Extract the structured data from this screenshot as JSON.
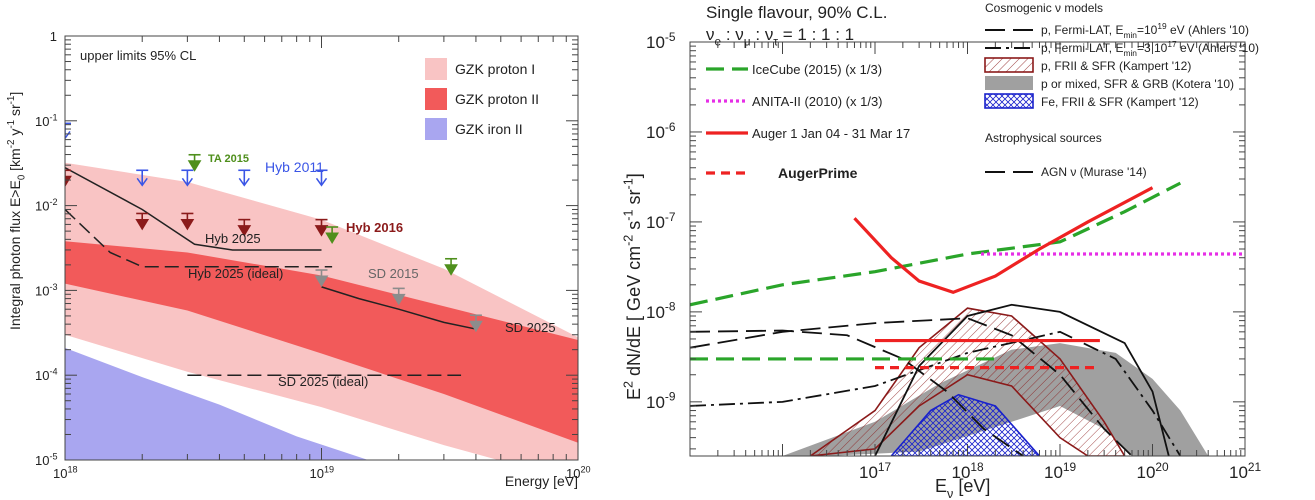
{
  "chart_data": [
    {
      "type": "line",
      "panel": "left",
      "title": "",
      "xlabel": "Energy [eV]",
      "ylabel": "Integral photon flux E>E0 [km^-2 y^-1 sr^-1]",
      "ylabel_parts": {
        "main": "Integral photon flux E>E",
        "sub": "0",
        "units": " [km",
        "u1": "-2",
        "u2": " y",
        "u3": "-1",
        "u4": " sr",
        "u5": "-1",
        "end": "]"
      },
      "xscale": "log",
      "yscale": "log",
      "xlim": [
        1e+18,
        1e+20
      ],
      "ylim": [
        1e-05,
        1
      ],
      "x_ticks": [
        {
          "value": 1e+18,
          "base": "10",
          "exp": "18"
        },
        {
          "value": 1e+19,
          "base": "10",
          "exp": "19"
        },
        {
          "value": 1e+20,
          "base": "10",
          "exp": "20"
        }
      ],
      "y_ticks": [
        {
          "value": 1,
          "label": "1",
          "exp": ""
        },
        {
          "value": 0.1,
          "base": "10",
          "exp": "-1"
        },
        {
          "value": 0.01,
          "base": "10",
          "exp": "-2"
        },
        {
          "value": 0.001,
          "base": "10",
          "exp": "-3"
        },
        {
          "value": 0.0001,
          "base": "10",
          "exp": "-4"
        },
        {
          "value": 1e-05,
          "base": "10",
          "exp": "-5"
        }
      ],
      "annotation": "upper limits 95% CL",
      "legend_position": "top-right",
      "legend": [
        {
          "label": "GZK proton I",
          "color": "#f9c4c4"
        },
        {
          "label": "GZK proton II",
          "color": "#f25a5a"
        },
        {
          "label": "GZK iron II",
          "color": "#a9a6f0"
        }
      ],
      "bands": [
        {
          "name": "GZK proton I",
          "color": "#f9c4c4",
          "upper": [
            [
              1e+18,
              0.032
            ],
            [
              3e+18,
              0.019
            ],
            [
              1e+19,
              0.0068
            ],
            [
              3e+19,
              0.0018
            ],
            [
              1e+20,
              0.00028
            ]
          ],
          "lower": [
            [
              1e+18,
              0.0003
            ],
            [
              3e+18,
              0.00011
            ],
            [
              1e+19,
              4.2e-05
            ],
            [
              3e+19,
              1.5e-05
            ],
            [
              1e+20,
              5.5e-06
            ]
          ]
        },
        {
          "name": "GZK proton II",
          "color": "#f25a5a",
          "upper": [
            [
              1e+18,
              0.0038
            ],
            [
              3e+18,
              0.0028
            ],
            [
              1e+19,
              0.0015
            ],
            [
              3e+19,
              0.00065
            ],
            [
              1e+20,
              0.00026
            ]
          ],
          "lower": [
            [
              1e+18,
              0.0012
            ],
            [
              3e+18,
              0.00058
            ],
            [
              1e+19,
              0.00018
            ],
            [
              3e+19,
              6e-05
            ],
            [
              1e+20,
              1.6e-05
            ]
          ]
        },
        {
          "name": "GZK iron II",
          "color": "#a9a6f0",
          "upper": [
            [
              1e+18,
              0.00021
            ],
            [
              2e+18,
              9.5e-05
            ],
            [
              4e+18,
              4.5e-05
            ],
            [
              8e+18,
              1.9e-05
            ],
            [
              1.6e+19,
              9.5e-06
            ]
          ],
          "lower": [
            [
              1e+18,
              1e-05
            ],
            [
              1.5e+19,
              1e-05
            ]
          ]
        }
      ],
      "series": [
        {
          "name": "Hyb 2025",
          "label": "Hyb 2025",
          "style": "solid",
          "points": [
            [
              1e+18,
              0.028
            ],
            [
              2e+18,
              0.009
            ],
            [
              3.2e+18,
              0.0035
            ],
            [
              4.5e+18,
              0.003
            ],
            [
              1e+19,
              0.003
            ]
          ]
        },
        {
          "name": "Hyb 2025 (ideal)",
          "label": "Hyb 2025 (ideal)",
          "style": "dashed",
          "points": [
            [
              1e+18,
              0.009
            ],
            [
              1.5e+18,
              0.0028
            ],
            [
              2e+18,
              0.0019
            ],
            [
              3e+18,
              0.0019
            ],
            [
              1.1e+19,
              0.0019
            ]
          ]
        },
        {
          "name": "SD 2025",
          "label": "SD 2025",
          "style": "solid",
          "points": [
            [
              1e+19,
              0.0011
            ],
            [
              1.4e+19,
              0.0008
            ],
            [
              2e+19,
              0.0006
            ],
            [
              3e+19,
              0.00042
            ],
            [
              4e+19,
              0.00035
            ]
          ]
        },
        {
          "name": "SD 2025 (ideal)",
          "label": "SD 2025 (ideal)",
          "style": "dashed",
          "points": [
            [
              3e+18,
              0.0001
            ],
            [
              3.5e+19,
              0.0001
            ]
          ]
        }
      ],
      "upper_limits": [
        {
          "name": "Hyb 2011",
          "label": "Hyb 2011",
          "color": "#3a55e6",
          "marker": "open-arrow",
          "points": [
            [
              1e+18,
              0.075
            ],
            [
              2e+18,
              0.021
            ],
            [
              3e+18,
              0.021
            ],
            [
              5e+18,
              0.021
            ],
            [
              1e+19,
              0.021
            ]
          ]
        },
        {
          "name": "Hyb 2016",
          "label": "Hyb 2016",
          "color": "#8b1a1a",
          "marker": "filled-arrow",
          "points": [
            [
              1e+18,
              0.021
            ],
            [
              2e+18,
              0.0065
            ],
            [
              3e+18,
              0.0065
            ],
            [
              5e+18,
              0.0055
            ],
            [
              1e+19,
              0.0055
            ]
          ]
        },
        {
          "name": "TA 2015",
          "label": "TA 2015",
          "color": "#4f8f1c",
          "marker": "filled-arrow",
          "points": [
            [
              3.2e+18,
              0.032
            ],
            [
              1.1e+19,
              0.0045
            ],
            [
              3.2e+19,
              0.0019
            ]
          ]
        },
        {
          "name": "SD 2015",
          "label": "SD 2015",
          "color": "#8c8c8c",
          "marker": "filled-arrow",
          "points": [
            [
              1e+19,
              0.0014
            ],
            [
              2e+19,
              0.00085
            ],
            [
              4e+19,
              0.00041
            ]
          ]
        }
      ]
    },
    {
      "type": "line",
      "panel": "right",
      "title": "Single flavour, 90% C.L.",
      "ratio_label": {
        "e": "ν",
        "es": "e",
        "sep1": " : ν",
        "ms": "μ",
        "sep2": " : ν",
        "ts": "τ",
        "tail": " = 1 : 1 : 1"
      },
      "xlabel": "Eν [eV]",
      "xlabel_parts": {
        "a": "E",
        "sub": "ν",
        "b": " [eV]"
      },
      "ylabel": "E² dN/dE [ GeV cm⁻² s⁻¹ sr⁻¹]",
      "ylabel_parts": {
        "a": "E",
        "sq": "2",
        "b": " dN/dE  [ GeV cm",
        "c1": "-2",
        "c2": " s",
        "c3": "-1",
        "c4": " sr",
        "c5": "-1",
        "c6": "]"
      },
      "xscale": "log",
      "yscale": "log",
      "xlim": [
        1000000000000000.0,
        1e+21
      ],
      "ylim": [
        2.5e-10,
        1e-05
      ],
      "x_ticks": [
        {
          "value": 1e+17,
          "base": "10",
          "exp": "17"
        },
        {
          "value": 1e+18,
          "base": "10",
          "exp": "18"
        },
        {
          "value": 1e+19,
          "base": "10",
          "exp": "19"
        },
        {
          "value": 1e+20,
          "base": "10",
          "exp": "20"
        },
        {
          "value": 1e+21,
          "base": "10",
          "exp": "21"
        }
      ],
      "y_ticks": [
        {
          "value": 1e-05,
          "base": "10",
          "exp": "-5"
        },
        {
          "value": 1e-06,
          "base": "10",
          "exp": "-6"
        },
        {
          "value": 1e-07,
          "base": "10",
          "exp": "-7"
        },
        {
          "value": 1e-08,
          "base": "10",
          "exp": "-8"
        },
        {
          "value": 1e-09,
          "base": "10",
          "exp": "-9"
        }
      ],
      "legend_left": [
        {
          "label": "IceCube (2015) (x 1/3)",
          "color": "#2aa52a",
          "style": "dashed"
        },
        {
          "label": "ANITA-II (2010) (x 1/3)",
          "color": "#e62ee6",
          "style": "dotted"
        },
        {
          "label": "Auger 1 Jan 04 - 31 Mar 17",
          "color": "#ee2222",
          "style": "solid"
        },
        {
          "label": "AugerPrime",
          "color": "#ee2222",
          "style": "short-dashed"
        }
      ],
      "legend_right_header": "Cosmogenic  ν models",
      "legend_right": [
        {
          "label": "p, Fermi-LAT, E",
          "sub": "min",
          "tail": "=10",
          "sup": "19",
          "end": " eV (Ahlers '10)",
          "color": "#111111",
          "style": "long-dash"
        },
        {
          "label": "p, Fermi-LAT, E",
          "sub": "min",
          "tail": "=3 10",
          "sup": "17",
          "end": " eV (Ahlers '10)",
          "color": "#111111",
          "style": "dash-dot"
        },
        {
          "label": "p, FRII & SFR (Kampert '12)",
          "sub": "",
          "tail": "",
          "sup": "",
          "end": "",
          "color": "#8b1a1a",
          "style": "hatched"
        },
        {
          "label": "p or mixed, SFR & GRB (Kotera '10)",
          "sub": "",
          "tail": "",
          "sup": "",
          "end": "",
          "color": "#a0a0a0",
          "style": "filled"
        },
        {
          "label": "Fe, FRII & SFR (Kampert '12)",
          "sub": "",
          "tail": "",
          "sup": "",
          "end": "",
          "color": "#1a22cc",
          "style": "cross-hatched"
        }
      ],
      "astro_header": "Astrophysical sources",
      "astro_legend": [
        {
          "label": "AGN ν (Murase '14)",
          "color": "#111111",
          "style": "long-dash"
        }
      ],
      "series": [
        {
          "name": "IceCube (2015) (x 1/3)",
          "color": "#2aa52a",
          "style": "dashed",
          "points": [
            [
              1000000000000000.0,
              1.2e-08
            ],
            [
              1e+16,
              2e-08
            ],
            [
              1e+17,
              2.8e-08
            ],
            [
              1e+18,
              4.4e-08
            ],
            [
              1e+19,
              6e-08
            ],
            [
              5e+19,
              1.3e-07
            ],
            [
              2e+20,
              2.7e-07
            ]
          ]
        },
        {
          "name": "IceCube flat",
          "color": "#2aa52a",
          "style": "dashed",
          "points": [
            [
              1000000000000000.0,
              3e-09
            ],
            [
              2e+18,
              3e-09
            ]
          ]
        },
        {
          "name": "ANITA-II (2010) (x 1/3)",
          "color": "#e62ee6",
          "style": "dotted",
          "points": [
            [
              1.4e+18,
              4.4e-08
            ],
            [
              1e+21,
              4.4e-08
            ]
          ]
        },
        {
          "name": "Auger 1 Jan 04 - 31 Mar 17",
          "color": "#ee2222",
          "style": "solid",
          "points": [
            [
              6e+16,
              1.1e-07
            ],
            [
              1.5e+17,
              4e-08
            ],
            [
              3e+17,
              2.2e-08
            ],
            [
              7e+17,
              1.65e-08
            ],
            [
              2e+18,
              2.5e-08
            ],
            [
              6e+18,
              5e-08
            ],
            [
              2e+19,
              1e-07
            ],
            [
              1e+20,
              2.4e-07
            ]
          ]
        },
        {
          "name": "Auger flat",
          "color": "#ee2222",
          "style": "solid",
          "points": [
            [
              1e+17,
              4.8e-09
            ],
            [
              2.7e+19,
              4.8e-09
            ]
          ]
        },
        {
          "name": "AugerPrime",
          "color": "#ee2222",
          "style": "short-dashed",
          "points": [
            [
              1e+17,
              2.4e-09
            ],
            [
              2.5e+19,
              2.4e-09
            ]
          ]
        },
        {
          "name": "p, Fermi-LAT, Emin=10^19 eV (Ahlers '10)",
          "color": "#111111",
          "style": "long-dash",
          "points": [
            [
              1000000000000000.0,
              6e-09
            ],
            [
              1e+16,
              6.2e-09
            ],
            [
              5e+16,
              5.5e-09
            ],
            [
              2e+17,
              3e-09
            ],
            [
              6e+17,
              1.3e-09
            ],
            [
              1.5e+18,
              5e-10
            ],
            [
              4e+18,
              2.5e-10
            ]
          ]
        },
        {
          "name": "AGN ν (Murase '14)",
          "color": "#111111",
          "style": "long-dash",
          "points": [
            [
              1000000000000000.0,
              4e-09
            ],
            [
              1e+16,
              6e-09
            ],
            [
              1e+17,
              7.5e-09
            ],
            [
              1e+18,
              8.5e-09
            ],
            [
              3e+18,
              5.5e-09
            ],
            [
              1e+19,
              2e-09
            ],
            [
              3e+19,
              5e-10
            ],
            [
              6e+19,
              2.5e-10
            ]
          ]
        },
        {
          "name": "p, Fermi-LAT, Emin=3 10^17 eV (Ahlers '10)",
          "color": "#111111",
          "style": "dash-dot",
          "points": [
            [
              1000000000000000.0,
              9e-10
            ],
            [
              1e+16,
              1e-09
            ],
            [
              1e+17,
              1.5e-09
            ],
            [
              1e+18,
              3.5e-09
            ],
            [
              1e+19,
              6e-09
            ],
            [
              4e+19,
              3e-09
            ],
            [
              1e+20,
              8e-10
            ],
            [
              2e+20,
              2.5e-10
            ]
          ]
        },
        {
          "name": "p, FRII & SFR (Kampert '12)",
          "color": "#8b1a1a",
          "style": "hatched",
          "points": [
            [
              2e+16,
              2.5e-10
            ],
            [
              1e+17,
              8e-10
            ],
            [
              3e+17,
              4e-09
            ],
            [
              1e+18,
              1.1e-08
            ],
            [
              3e+18,
              9e-09
            ],
            [
              1e+19,
              3e-09
            ],
            [
              3e+19,
              6e-10
            ],
            [
              5e+19,
              2.5e-10
            ]
          ]
        },
        {
          "name": "p or mixed, SFR & GRB (Kotera '10)",
          "color": "#a0a0a0",
          "style": "filled",
          "points": [
            [
              1e+16,
              2.5e-10
            ],
            [
              1e+17,
              6e-10
            ],
            [
              1e+18,
              2e-09
            ],
            [
              1e+19,
              4e-09
            ],
            [
              1e+20,
              1.8e-09
            ],
            [
              3e+20,
              2.5e-10
            ]
          ]
        },
        {
          "name": "Fe, FRII & SFR (Kampert '12)",
          "color": "#1a22cc",
          "style": "cross-hatched",
          "points": [
            [
              1.5e+17,
              2.5e-10
            ],
            [
              4e+17,
              8e-10
            ],
            [
              8e+17,
              1.2e-09
            ],
            [
              2e+18,
              9e-10
            ],
            [
              6e+18,
              2.5e-10
            ]
          ]
        },
        {
          "name": "Fermi-LAT solid",
          "color": "#111111",
          "style": "solid",
          "points": [
            [
              1e+17,
              2.5e-10
            ],
            [
              3e+17,
              2.5e-09
            ],
            [
              1e+18,
              9e-09
            ],
            [
              3e+18,
              1.2e-08
            ],
            [
              1e+19,
              1e-08
            ],
            [
              5e+19,
              4.5e-09
            ],
            [
              1e+20,
              1.3e-09
            ],
            [
              1.5e+20,
              2.5e-10
            ]
          ]
        }
      ]
    }
  ]
}
